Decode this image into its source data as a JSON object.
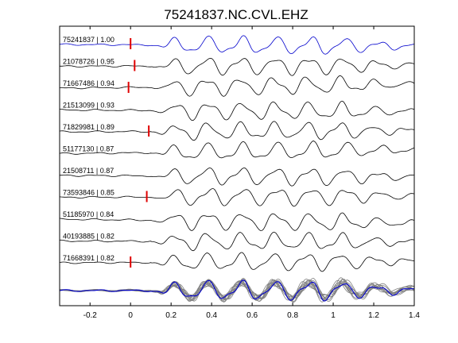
{
  "chart_data": {
    "type": "line",
    "title": "75241837.NC.CVL.EHZ",
    "xlabel": "",
    "ylabel": "",
    "xlim": [
      -0.35,
      1.4
    ],
    "xticks": [
      "-0.2",
      "0",
      "0.2",
      "0.4",
      "0.6",
      "0.8",
      "1",
      "1.2",
      "1.4"
    ],
    "xtick_values": [
      -0.2,
      0,
      0.2,
      0.4,
      0.6,
      0.8,
      1.0,
      1.2,
      1.4
    ],
    "grid": false,
    "legend": "none",
    "colors": {
      "reference": "#0000cc",
      "trace": "#000000",
      "pick": "#e00000",
      "stack": "#808080"
    },
    "traces": [
      {
        "label": "75241837 | 1.00",
        "pick_time": 0.0,
        "reference": true
      },
      {
        "label": "21078726 | 0.95",
        "pick_time": 0.02
      },
      {
        "label": "71667486 | 0.94",
        "pick_time": -0.01
      },
      {
        "label": "21513099 | 0.93",
        "pick_time": null
      },
      {
        "label": "71829981 | 0.89",
        "pick_time": 0.09
      },
      {
        "label": "51177130 | 0.87",
        "pick_time": null
      },
      {
        "label": "21508711 | 0.87",
        "pick_time": null
      },
      {
        "label": "73593846 | 0.85",
        "pick_time": 0.08
      },
      {
        "label": "51185970 | 0.84",
        "pick_time": null
      },
      {
        "label": "40193885 | 0.82",
        "pick_time": null
      },
      {
        "label": "71668391 | 0.82",
        "pick_time": 0.0
      }
    ]
  }
}
